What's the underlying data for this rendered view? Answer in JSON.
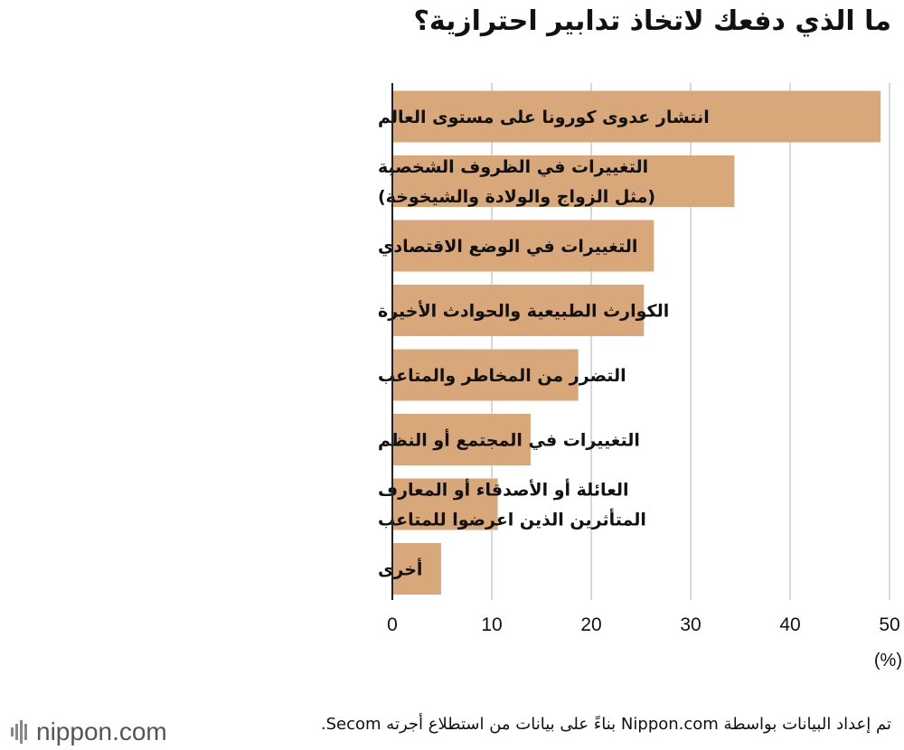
{
  "title": "ما الذي دفعك لاتخاذ تدابير احترازية؟",
  "source_note": "تم إعداد البيانات بواسطة Nippon.com بناءً على بيانات من استطلاع أجرته Secom.",
  "logo_text": "nippon.com",
  "colors": {
    "bar": "#d9a87a",
    "grid": "#cccccc",
    "axis": "#222222",
    "text": "#111111"
  },
  "chart_data": {
    "type": "bar",
    "orientation": "horizontal",
    "categories": [
      [
        "انتشار عدوى كورونا على مستوى العالم"
      ],
      [
        "التغييرات في الظروف الشخصية",
        "(مثل الزواج والولادة والشيخوخة)"
      ],
      [
        "التغييرات في الوضع الاقتصادي"
      ],
      [
        "الكوارث الطبيعية والحوادث الأخيرة"
      ],
      [
        "التضرر من المخاطر والمتاعب"
      ],
      [
        "التغييرات في المجتمع أو النظم"
      ],
      [
        "العائلة أو الأصدقاء أو المعارف",
        "المتأثرين الذين اعرضوا للمتاعب"
      ],
      [
        "أخرى"
      ]
    ],
    "values": [
      49.1,
      34.4,
      26.3,
      25.3,
      18.7,
      13.9,
      10.6,
      4.9
    ],
    "xlim": [
      0,
      50
    ],
    "ticks": [
      0,
      10,
      20,
      30,
      40,
      50
    ],
    "unit_label": "(%)",
    "grid": true
  }
}
